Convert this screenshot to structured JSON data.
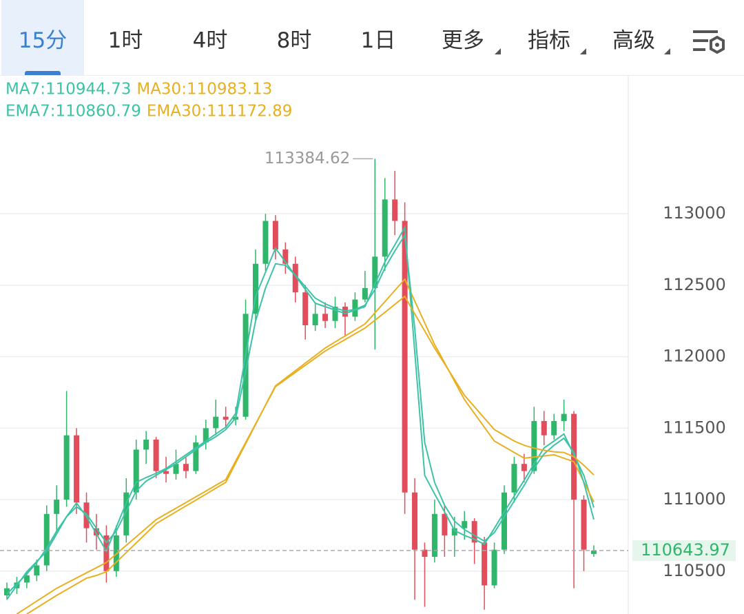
{
  "tabs": [
    "15分",
    "1时",
    "4时",
    "8时",
    "1日",
    "更多",
    "指标",
    "高级"
  ],
  "chart_data": {
    "type": "candlestick",
    "open": [
      110330,
      110380,
      110420,
      110470,
      110540,
      110900,
      111000,
      111450,
      110980,
      110800,
      110750,
      110500,
      110750,
      111050,
      111350,
      111420,
      111200,
      111180,
      111250,
      111200,
      111400,
      111500,
      111580,
      111560,
      111580,
      112300,
      112650,
      112950,
      112750,
      112650,
      112450,
      112220,
      112300,
      112250,
      112350,
      112280,
      112400,
      112480,
      112700,
      113100,
      112950,
      111050,
      110650,
      110600,
      110900,
      110750,
      110800,
      110850,
      110700,
      110400,
      110650,
      111050,
      111250,
      111200,
      111550,
      111450,
      111550,
      111600,
      111000,
      110620
    ],
    "high": [
      110420,
      110460,
      110500,
      110580,
      110960,
      111100,
      111760,
      111500,
      111050,
      110900,
      110820,
      110820,
      111150,
      111420,
      111480,
      111440,
      111300,
      111350,
      111300,
      111450,
      111560,
      111700,
      111650,
      111650,
      112400,
      112750,
      113000,
      112990,
      112800,
      112700,
      112500,
      112380,
      112380,
      112420,
      112380,
      112450,
      112600,
      113384.62,
      113250,
      113300,
      113080,
      111150,
      110700,
      111000,
      110960,
      110880,
      110920,
      110870,
      110740,
      110700,
      111100,
      111300,
      111320,
      111650,
      111620,
      111600,
      111700,
      111620,
      111030,
      110680
    ],
    "low": [
      110300,
      110340,
      110380,
      110430,
      110500,
      110780,
      110950,
      110900,
      110700,
      110650,
      110420,
      110460,
      110700,
      111000,
      111250,
      111150,
      111120,
      111140,
      111150,
      111180,
      111350,
      111450,
      111500,
      111520,
      111560,
      112250,
      112600,
      112680,
      112580,
      112380,
      112120,
      112180,
      112200,
      112200,
      112140,
      112250,
      112380,
      112050,
      112600,
      112850,
      110900,
      110300,
      110250,
      110560,
      110600,
      110600,
      110720,
      110550,
      110230,
      110380,
      110620,
      110980,
      111120,
      111180,
      111380,
      111420,
      111480,
      110380,
      110500,
      110600
    ],
    "close": [
      110380,
      110420,
      110470,
      110540,
      110900,
      111000,
      111450,
      110980,
      110800,
      110750,
      110500,
      110750,
      111050,
      111350,
      111420,
      111200,
      111180,
      111250,
      111200,
      111400,
      111500,
      111580,
      111560,
      111580,
      112300,
      112650,
      112950,
      112750,
      112650,
      112450,
      112220,
      112300,
      112250,
      112350,
      112280,
      112400,
      112480,
      112700,
      113100,
      112950,
      111050,
      110650,
      110600,
      110900,
      110750,
      110800,
      110850,
      110700,
      110400,
      110650,
      111050,
      111250,
      111200,
      111550,
      111450,
      111550,
      111600,
      111000,
      110650,
      110643.97
    ],
    "up_color": "#2fb66a",
    "down_color": "#e24d5b",
    "series": [
      {
        "name": "MA7:110944.73",
        "color": "#3cc3a5",
        "values": [
          110302,
          110399,
          110495,
          110567,
          110640,
          110760,
          110881,
          110977,
          110881,
          110760,
          110640,
          110808,
          110977,
          111121,
          111155,
          111184,
          111218,
          111266,
          111314,
          111362,
          111410,
          111459,
          111507,
          111603,
          112012,
          112422,
          112591,
          112759,
          112663,
          112566,
          112470,
          112374,
          112350,
          112326,
          112302,
          112326,
          112350,
          112509,
          112663,
          112783,
          112904,
          112037,
          111170,
          111040,
          110914,
          110784,
          110750,
          110722,
          110688,
          110799,
          110914,
          111025,
          111136,
          111251,
          111362,
          111410,
          111459,
          111314,
          111170,
          110944.73
        ]
      },
      {
        "name": "MA30:110983.13",
        "color": "#e8b020",
        "values": [
          null,
          null,
          110200,
          110243,
          110287,
          110330,
          110370,
          110410,
          110450,
          110470,
          110495,
          110562,
          110630,
          110697,
          110765,
          110832,
          110873,
          110915,
          110956,
          110997,
          111038,
          111080,
          111121,
          111256,
          111391,
          111526,
          111661,
          111796,
          111849,
          111902,
          111955,
          112008,
          112061,
          112103,
          112145,
          112187,
          112229,
          112307,
          112385,
          112464,
          112542,
          112390,
          112237,
          112085,
          111957,
          111828,
          111700,
          111603,
          111507,
          111410,
          111370,
          111330,
          111290,
          111298,
          111306,
          111314,
          111290,
          111266,
          111124,
          110983.13
        ]
      },
      {
        "name": "EMA7:110860.79",
        "color": "#3cc3a5",
        "values": [
          110340,
          110410,
          110480,
          110560,
          110660,
          110780,
          110880,
          110950,
          110900,
          110800,
          110700,
          110780,
          110920,
          111060,
          111130,
          111170,
          111210,
          111250,
          111300,
          111350,
          111400,
          111440,
          111490,
          111570,
          111900,
          112250,
          112480,
          112650,
          112640,
          112570,
          112490,
          112410,
          112370,
          112340,
          112320,
          112330,
          112360,
          112470,
          112620,
          112740,
          112850,
          112200,
          111400,
          111120,
          110960,
          110850,
          110790,
          110750,
          110710,
          110770,
          110880,
          110990,
          111100,
          111220,
          111320,
          111380,
          111430,
          111330,
          111120,
          110860.79
        ]
      },
      {
        "name": "EMA30:111172.89",
        "color": "#e8b020",
        "values": [
          null,
          110200,
          110245,
          110290,
          110335,
          110380,
          110416,
          110452,
          110488,
          110524,
          110560,
          110620,
          110680,
          110740,
          110800,
          110860,
          110900,
          110940,
          110980,
          111020,
          111060,
          111100,
          111140,
          111270,
          111400,
          111530,
          111660,
          111790,
          111840,
          111890,
          111940,
          111990,
          112040,
          112080,
          112120,
          112160,
          112200,
          112255,
          112310,
          112366,
          112422,
          112300,
          112180,
          112060,
          111950,
          111840,
          111730,
          111650,
          111570,
          111490,
          111450,
          111410,
          111380,
          111360,
          111345,
          111335,
          111330,
          111300,
          111240,
          111172.89
        ]
      }
    ],
    "ylim": [
      110200,
      113965
    ],
    "yticks": [
      110500,
      111000,
      111500,
      112000,
      112500,
      113000
    ],
    "grid": true
  }
}
